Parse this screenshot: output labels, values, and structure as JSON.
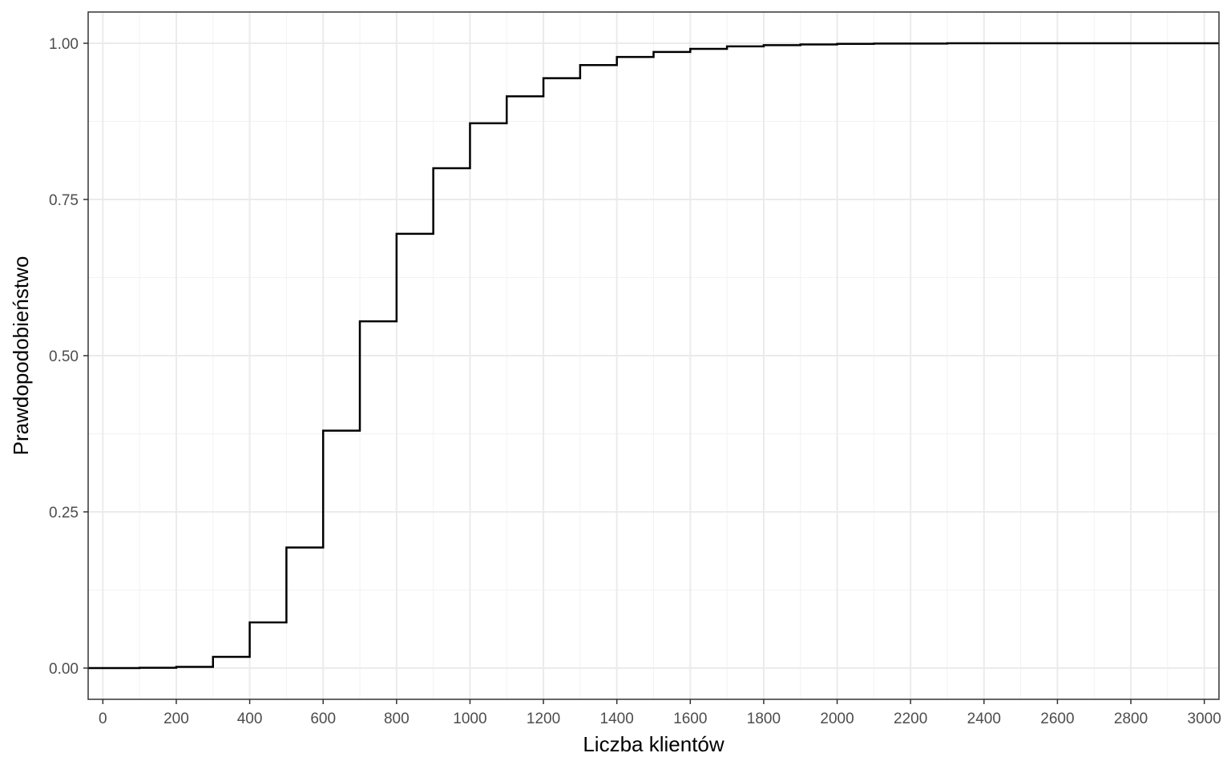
{
  "chart_data": {
    "type": "line",
    "step": true,
    "xlabel": "Liczba klientów",
    "ylabel": "Prawdopodobieństwo",
    "xlim": [
      -40,
      3040
    ],
    "ylim": [
      -0.05,
      1.05
    ],
    "x_ticks": [
      0,
      200,
      400,
      600,
      800,
      1000,
      1200,
      1400,
      1600,
      1800,
      2000,
      2200,
      2400,
      2600,
      2800,
      3000
    ],
    "x_tick_labels": [
      "0",
      "200",
      "400",
      "600",
      "800",
      "1000",
      "1200",
      "1400",
      "1600",
      "1800",
      "2000",
      "2200",
      "2400",
      "2600",
      "2800",
      "3000"
    ],
    "y_ticks": [
      0,
      0.25,
      0.5,
      0.75,
      1.0
    ],
    "y_tick_labels": [
      "0.00",
      "0.25",
      "0.50",
      "0.75",
      "1.00"
    ],
    "grid": true,
    "series": [
      {
        "x": [
          -40,
          100,
          200,
          300,
          400,
          500,
          600,
          700,
          800,
          900,
          1000,
          1100,
          1200,
          1300,
          1400,
          1500,
          1600,
          1700,
          1800,
          1900,
          2000,
          2100,
          2300,
          3040
        ],
        "y": [
          0.0,
          0.0005,
          0.002,
          0.018,
          0.073,
          0.193,
          0.38,
          0.555,
          0.695,
          0.8,
          0.872,
          0.915,
          0.944,
          0.965,
          0.978,
          0.986,
          0.991,
          0.995,
          0.997,
          0.998,
          0.999,
          0.9995,
          1.0,
          1.0
        ]
      }
    ]
  }
}
